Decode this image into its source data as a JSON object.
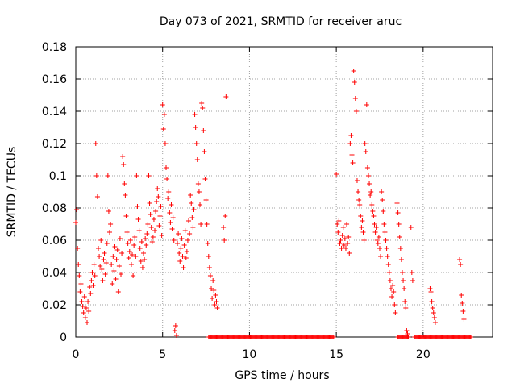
{
  "chart_data": {
    "type": "scatter",
    "title": "Day 073 of 2021, SRMTID for receiver aruc",
    "xlabel": "GPS time / hours",
    "ylabel": "SRMTID / TECUs",
    "xlim": [
      0,
      24
    ],
    "ylim": [
      0,
      0.18
    ],
    "xticks": [
      0,
      5,
      10,
      15,
      20
    ],
    "xtick_labels": [
      "0",
      "5",
      "10",
      "15",
      "20"
    ],
    "yticks": [
      0,
      0.02,
      0.04,
      0.06,
      0.08,
      0.1,
      0.12,
      0.14,
      0.16,
      0.18
    ],
    "ytick_labels": [
      "0",
      "0.02",
      "0.04",
      "0.06",
      "0.08",
      "0.1",
      "0.12",
      "0.14",
      "0.16",
      "0.18"
    ],
    "grid": true,
    "marker": "+",
    "series_color": "#ff0000",
    "series": [
      {
        "name": "SRMTID",
        "points": [
          [
            0.0,
            0.071
          ],
          [
            0.05,
            0.079
          ],
          [
            0.1,
            0.055
          ],
          [
            0.15,
            0.045
          ],
          [
            0.2,
            0.038
          ],
          [
            0.25,
            0.028
          ],
          [
            0.3,
            0.033
          ],
          [
            0.35,
            0.022
          ],
          [
            0.4,
            0.019
          ],
          [
            0.45,
            0.015
          ],
          [
            0.5,
            0.025
          ],
          [
            0.55,
            0.012
          ],
          [
            0.6,
            0.018
          ],
          [
            0.65,
            0.009
          ],
          [
            0.7,
            0.022
          ],
          [
            0.75,
            0.016
          ],
          [
            0.8,
            0.031
          ],
          [
            0.85,
            0.027
          ],
          [
            0.9,
            0.035
          ],
          [
            0.95,
            0.04
          ],
          [
            1.0,
            0.032
          ],
          [
            1.05,
            0.045
          ],
          [
            1.1,
            0.038
          ],
          [
            1.15,
            0.12
          ],
          [
            1.2,
            0.1
          ],
          [
            1.25,
            0.087
          ],
          [
            1.3,
            0.055
          ],
          [
            1.35,
            0.05
          ],
          [
            1.4,
            0.044
          ],
          [
            1.45,
            0.06
          ],
          [
            1.5,
            0.042
          ],
          [
            1.55,
            0.035
          ],
          [
            1.6,
            0.048
          ],
          [
            1.65,
            0.052
          ],
          [
            1.7,
            0.039
          ],
          [
            1.75,
            0.046
          ],
          [
            1.8,
            0.058
          ],
          [
            1.85,
            0.1
          ],
          [
            1.9,
            0.078
          ],
          [
            1.95,
            0.065
          ],
          [
            2.0,
            0.07
          ],
          [
            2.05,
            0.045
          ],
          [
            2.1,
            0.033
          ],
          [
            2.15,
            0.05
          ],
          [
            2.2,
            0.041
          ],
          [
            2.25,
            0.056
          ],
          [
            2.3,
            0.036
          ],
          [
            2.35,
            0.048
          ],
          [
            2.4,
            0.054
          ],
          [
            2.45,
            0.028
          ],
          [
            2.5,
            0.044
          ],
          [
            2.55,
            0.061
          ],
          [
            2.6,
            0.039
          ],
          [
            2.65,
            0.052
          ],
          [
            2.7,
            0.112
          ],
          [
            2.75,
            0.107
          ],
          [
            2.8,
            0.095
          ],
          [
            2.85,
            0.088
          ],
          [
            2.9,
            0.075
          ],
          [
            2.95,
            0.065
          ],
          [
            3.0,
            0.058
          ],
          [
            3.05,
            0.049
          ],
          [
            3.1,
            0.053
          ],
          [
            3.15,
            0.06
          ],
          [
            3.2,
            0.045
          ],
          [
            3.25,
            0.051
          ],
          [
            3.3,
            0.038
          ],
          [
            3.35,
            0.057
          ],
          [
            3.4,
            0.062
          ],
          [
            3.45,
            0.05
          ],
          [
            3.5,
            0.1
          ],
          [
            3.55,
            0.081
          ],
          [
            3.6,
            0.073
          ],
          [
            3.65,
            0.066
          ],
          [
            3.7,
            0.055
          ],
          [
            3.75,
            0.047
          ],
          [
            3.8,
            0.059
          ],
          [
            3.85,
            0.043
          ],
          [
            3.9,
            0.052
          ],
          [
            3.95,
            0.048
          ],
          [
            4.0,
            0.061
          ],
          [
            4.05,
            0.057
          ],
          [
            4.1,
            0.064
          ],
          [
            4.15,
            0.07
          ],
          [
            4.2,
            0.1
          ],
          [
            4.25,
            0.083
          ],
          [
            4.3,
            0.076
          ],
          [
            4.35,
            0.068
          ],
          [
            4.4,
            0.059
          ],
          [
            4.45,
            0.062
          ],
          [
            4.5,
            0.073
          ],
          [
            4.55,
            0.066
          ],
          [
            4.6,
            0.078
          ],
          [
            4.65,
            0.084
          ],
          [
            4.7,
            0.092
          ],
          [
            4.75,
            0.087
          ],
          [
            4.8,
            0.069
          ],
          [
            4.85,
            0.075
          ],
          [
            4.9,
            0.081
          ],
          [
            4.95,
            0.063
          ],
          [
            5.0,
            0.144
          ],
          [
            5.05,
            0.129
          ],
          [
            5.1,
            0.138
          ],
          [
            5.15,
            0.12
          ],
          [
            5.2,
            0.105
          ],
          [
            5.25,
            0.098
          ],
          [
            5.3,
            0.086
          ],
          [
            5.35,
            0.09
          ],
          [
            5.4,
            0.077
          ],
          [
            5.45,
            0.071
          ],
          [
            5.5,
            0.082
          ],
          [
            5.55,
            0.067
          ],
          [
            5.6,
            0.074
          ],
          [
            5.65,
            0.06
          ],
          [
            5.7,
            0.004
          ],
          [
            5.75,
            0.007
          ],
          [
            5.8,
            0.001
          ],
          [
            5.85,
            0.058
          ],
          [
            5.9,
            0.064
          ],
          [
            5.95,
            0.052
          ],
          [
            6.0,
            0.047
          ],
          [
            6.05,
            0.055
          ],
          [
            6.1,
            0.061
          ],
          [
            6.15,
            0.05
          ],
          [
            6.2,
            0.043
          ],
          [
            6.25,
            0.057
          ],
          [
            6.3,
            0.066
          ],
          [
            6.35,
            0.049
          ],
          [
            6.4,
            0.053
          ],
          [
            6.45,
            0.06
          ],
          [
            6.5,
            0.072
          ],
          [
            6.55,
            0.064
          ],
          [
            6.6,
            0.088
          ],
          [
            6.65,
            0.083
          ],
          [
            6.7,
            0.074
          ],
          [
            6.75,
            0.068
          ],
          [
            6.8,
            0.079
          ],
          [
            6.85,
            0.138
          ],
          [
            6.9,
            0.13
          ],
          [
            6.95,
            0.12
          ],
          [
            7.0,
            0.11
          ],
          [
            7.05,
            0.095
          ],
          [
            7.1,
            0.09
          ],
          [
            7.15,
            0.082
          ],
          [
            7.2,
            0.07
          ],
          [
            7.25,
            0.145
          ],
          [
            7.3,
            0.142
          ],
          [
            7.35,
            0.128
          ],
          [
            7.4,
            0.115
          ],
          [
            7.45,
            0.098
          ],
          [
            7.5,
            0.085
          ],
          [
            7.55,
            0.07
          ],
          [
            7.6,
            0.058
          ],
          [
            7.65,
            0.05
          ],
          [
            7.7,
            0.043
          ],
          [
            7.75,
            0.038
          ],
          [
            7.8,
            0.03
          ],
          [
            7.85,
            0.024
          ],
          [
            7.9,
            0.035
          ],
          [
            7.95,
            0.029
          ],
          [
            8.0,
            0.02
          ],
          [
            8.05,
            0.026
          ],
          [
            8.1,
            0.022
          ],
          [
            8.15,
            0.018
          ],
          [
            8.5,
            0.068
          ],
          [
            8.55,
            0.06
          ],
          [
            8.6,
            0.075
          ],
          [
            8.65,
            0.149
          ],
          [
            15.0,
            0.101
          ],
          [
            15.05,
            0.07
          ],
          [
            15.1,
            0.065
          ],
          [
            15.15,
            0.072
          ],
          [
            15.2,
            0.058
          ],
          [
            15.25,
            0.06
          ],
          [
            15.3,
            0.055
          ],
          [
            15.35,
            0.063
          ],
          [
            15.4,
            0.068
          ],
          [
            15.45,
            0.057
          ],
          [
            15.5,
            0.061
          ],
          [
            15.55,
            0.055
          ],
          [
            15.6,
            0.07
          ],
          [
            15.65,
            0.058
          ],
          [
            15.7,
            0.062
          ],
          [
            15.75,
            0.052
          ],
          [
            15.8,
            0.12
          ],
          [
            15.85,
            0.125
          ],
          [
            15.9,
            0.113
          ],
          [
            15.95,
            0.108
          ],
          [
            16.0,
            0.165
          ],
          [
            16.05,
            0.158
          ],
          [
            16.1,
            0.148
          ],
          [
            16.15,
            0.14
          ],
          [
            16.2,
            0.097
          ],
          [
            16.25,
            0.09
          ],
          [
            16.3,
            0.085
          ],
          [
            16.35,
            0.082
          ],
          [
            16.4,
            0.075
          ],
          [
            16.45,
            0.068
          ],
          [
            16.5,
            0.072
          ],
          [
            16.55,
            0.065
          ],
          [
            16.6,
            0.06
          ],
          [
            16.65,
            0.12
          ],
          [
            16.7,
            0.115
          ],
          [
            16.75,
            0.144
          ],
          [
            16.8,
            0.105
          ],
          [
            16.85,
            0.1
          ],
          [
            16.9,
            0.095
          ],
          [
            16.95,
            0.088
          ],
          [
            17.0,
            0.09
          ],
          [
            17.05,
            0.082
          ],
          [
            17.1,
            0.078
          ],
          [
            17.15,
            0.075
          ],
          [
            17.2,
            0.07
          ],
          [
            17.25,
            0.065
          ],
          [
            17.3,
            0.068
          ],
          [
            17.35,
            0.06
          ],
          [
            17.4,
            0.058
          ],
          [
            17.45,
            0.062
          ],
          [
            17.5,
            0.055
          ],
          [
            17.55,
            0.05
          ],
          [
            17.6,
            0.09
          ],
          [
            17.65,
            0.085
          ],
          [
            17.7,
            0.078
          ],
          [
            17.75,
            0.07
          ],
          [
            17.8,
            0.065
          ],
          [
            17.85,
            0.06
          ],
          [
            17.9,
            0.055
          ],
          [
            17.95,
            0.05
          ],
          [
            18.0,
            0.045
          ],
          [
            18.05,
            0.04
          ],
          [
            18.1,
            0.035
          ],
          [
            18.15,
            0.03
          ],
          [
            18.2,
            0.025
          ],
          [
            18.25,
            0.032
          ],
          [
            18.3,
            0.028
          ],
          [
            18.35,
            0.02
          ],
          [
            18.4,
            0.015
          ],
          [
            18.5,
            0.083
          ],
          [
            18.55,
            0.077
          ],
          [
            18.6,
            0.07
          ],
          [
            18.65,
            0.062
          ],
          [
            18.7,
            0.055
          ],
          [
            18.75,
            0.048
          ],
          [
            18.8,
            0.04
          ],
          [
            18.85,
            0.035
          ],
          [
            18.9,
            0.03
          ],
          [
            18.95,
            0.022
          ],
          [
            19.0,
            0.018
          ],
          [
            19.05,
            0.004
          ],
          [
            19.1,
            0.002
          ],
          [
            19.3,
            0.068
          ],
          [
            19.35,
            0.04
          ],
          [
            19.4,
            0.035
          ],
          [
            20.4,
            0.03
          ],
          [
            20.45,
            0.028
          ],
          [
            20.5,
            0.022
          ],
          [
            20.55,
            0.018
          ],
          [
            20.6,
            0.015
          ],
          [
            20.65,
            0.012
          ],
          [
            20.7,
            0.009
          ],
          [
            22.1,
            0.048
          ],
          [
            22.15,
            0.045
          ],
          [
            22.2,
            0.026
          ],
          [
            22.25,
            0.021
          ],
          [
            22.3,
            0.016
          ],
          [
            22.35,
            0.011
          ]
        ]
      }
    ],
    "zero_runs": [
      [
        7.65,
        14.85
      ],
      [
        18.55,
        19.15
      ],
      [
        19.5,
        22.75
      ]
    ]
  }
}
